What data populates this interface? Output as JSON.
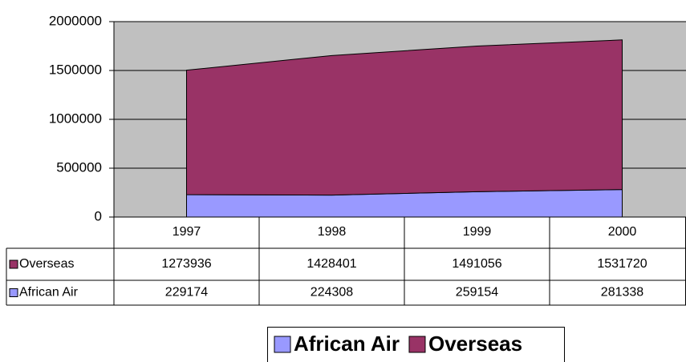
{
  "chart_data": {
    "type": "stacked-area",
    "categories": [
      "1997",
      "1998",
      "1999",
      "2000"
    ],
    "series": [
      {
        "name": "African Air",
        "color": "#9999ff",
        "values": [
          229174,
          224308,
          259154,
          281338
        ]
      },
      {
        "name": "Overseas",
        "color": "#993366",
        "values": [
          1273936,
          1428401,
          1491056,
          1531720
        ]
      }
    ],
    "ylim": [
      0,
      2000000
    ],
    "yticks": [
      0,
      500000,
      1000000,
      1500000,
      2000000
    ],
    "grid": true,
    "data_table": true,
    "legend": "bottom"
  }
}
